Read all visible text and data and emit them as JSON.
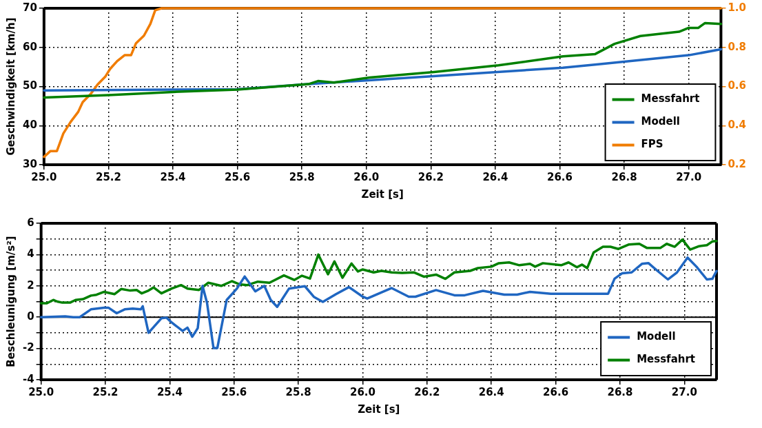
{
  "chart_data": [
    {
      "type": "line",
      "xlabel": "Zeit [s]",
      "ylabel": "Geschwindigkeit [km/h]",
      "xlim": [
        25.0,
        27.1
      ],
      "xticks": [
        {
          "value": 25.0,
          "label": "25.0"
        },
        25.2,
        25.4,
        25.6,
        25.8,
        {
          "value": 26.0,
          "label": "26.0"
        },
        26.2,
        26.4,
        26.6,
        26.8,
        {
          "value": 27.0,
          "label": "27.0"
        }
      ],
      "ylim": [
        30,
        70
      ],
      "yticks": [
        30,
        40,
        50,
        60,
        70
      ],
      "y2lim": [
        0.2,
        1.0
      ],
      "y2ticks": [
        0.2,
        0.4,
        0.6,
        0.8,
        {
          "value": 1.0,
          "label": "1.0"
        }
      ],
      "grid": true,
      "legend": "bottom right",
      "line_style": "solid",
      "marker": "none",
      "series": [
        {
          "name": "Messfahrt",
          "color": "#008000",
          "x": [
            25.0,
            25.2,
            25.4,
            25.6,
            25.82,
            25.85,
            25.9,
            26.01,
            26.21,
            26.41,
            26.61,
            26.71,
            26.77,
            26.85,
            26.97,
            27.0,
            27.03,
            27.05,
            27.1
          ],
          "values": [
            47.2,
            47.8,
            48.6,
            49.2,
            50.6,
            51.4,
            51.0,
            52.3,
            53.7,
            55.4,
            57.7,
            58.3,
            60.9,
            62.9,
            64.0,
            65.0,
            65.0,
            66.2,
            66.0
          ]
        },
        {
          "name": "Modell",
          "color": "#1f66c1",
          "x": [
            25.0,
            25.4,
            25.6,
            25.82,
            26.2,
            26.61,
            26.72,
            27.0,
            27.1
          ],
          "values": [
            49.0,
            49.2,
            49.3,
            50.6,
            52.6,
            54.8,
            55.7,
            58.0,
            59.5
          ]
        },
        {
          "name": "FPS",
          "color": "#f07c00",
          "axis": "y2",
          "x": [
            25.0,
            25.02,
            25.04,
            25.06,
            25.083,
            25.106,
            25.12,
            25.144,
            25.166,
            25.19,
            25.205,
            25.227,
            25.25,
            25.27,
            25.285,
            25.31,
            25.33,
            25.345,
            25.365,
            27.1
          ],
          "values": [
            0.24,
            0.27,
            0.27,
            0.36,
            0.42,
            0.47,
            0.52,
            0.56,
            0.61,
            0.65,
            0.69,
            0.73,
            0.76,
            0.76,
            0.82,
            0.86,
            0.92,
            0.99,
            1.0,
            1.0
          ]
        }
      ]
    },
    {
      "type": "line",
      "xlabel": "Zeit [s]",
      "ylabel": "Beschleunigung [m/s²]",
      "xlim": [
        25.0,
        27.1
      ],
      "xticks": [
        {
          "value": 25.0,
          "label": "25.0"
        },
        25.2,
        25.4,
        25.6,
        25.8,
        {
          "value": 26.0,
          "label": "26.0"
        },
        26.2,
        26.4,
        26.6,
        26.8,
        {
          "value": 27.0,
          "label": "27.0"
        }
      ],
      "ylim": [
        -4,
        6
      ],
      "yticks": [
        -4,
        {
          "value": -3,
          "label": null
        },
        -2,
        {
          "value": -1,
          "label": null
        },
        0,
        {
          "value": 1,
          "label": null
        },
        2,
        {
          "value": 3,
          "label": null
        },
        4,
        {
          "value": 5,
          "label": null
        },
        6
      ],
      "grid": true,
      "legend": "bottom right",
      "line_style": "solid",
      "marker": "none",
      "ref_lines": [
        {
          "axis": "y",
          "value": 0,
          "color": "#000000"
        }
      ],
      "series": [
        {
          "name": "Modell",
          "color": "#1f66c1",
          "x": [
            25.0,
            25.075,
            25.1,
            25.12,
            25.155,
            25.195,
            25.21,
            25.235,
            25.26,
            25.285,
            25.31,
            25.316,
            25.334,
            25.374,
            25.39,
            25.406,
            25.44,
            25.455,
            25.47,
            25.487,
            25.502,
            25.516,
            25.536,
            25.548,
            25.577,
            25.609,
            25.633,
            25.666,
            25.694,
            25.714,
            25.734,
            25.771,
            25.82,
            25.848,
            25.876,
            25.917,
            25.957,
            26.0,
            26.014,
            26.09,
            26.143,
            26.164,
            26.228,
            26.285,
            26.317,
            26.374,
            26.44,
            26.48,
            26.52,
            26.585,
            26.64,
            26.763,
            26.783,
            26.807,
            26.836,
            26.868,
            26.888,
            26.917,
            26.949,
            26.977,
            27.01,
            27.038,
            27.07,
            27.087,
            27.1
          ],
          "values": [
            0.0,
            0.05,
            0.0,
            0.0,
            0.5,
            0.6,
            0.6,
            0.25,
            0.5,
            0.55,
            0.5,
            0.7,
            -1.0,
            -0.07,
            -0.03,
            -0.34,
            -0.88,
            -0.67,
            -1.25,
            -0.7,
            2.0,
            0.9,
            -1.97,
            -1.97,
            1.1,
            1.83,
            2.6,
            1.65,
            2.0,
            1.1,
            0.66,
            1.83,
            1.98,
            1.3,
            0.98,
            1.47,
            1.92,
            1.31,
            1.19,
            1.86,
            1.31,
            1.31,
            1.73,
            1.4,
            1.4,
            1.68,
            1.44,
            1.44,
            1.62,
            1.5,
            1.5,
            1.5,
            2.46,
            2.81,
            2.86,
            3.41,
            3.46,
            2.95,
            2.41,
            2.86,
            3.81,
            3.22,
            2.41,
            2.45,
            2.95
          ]
        },
        {
          "name": "Messfahrt",
          "color": "#008000",
          "x": [
            25.0,
            25.018,
            25.038,
            25.05,
            25.066,
            25.09,
            25.107,
            25.13,
            25.155,
            25.172,
            25.196,
            25.228,
            25.249,
            25.277,
            25.297,
            25.313,
            25.334,
            25.35,
            25.374,
            25.406,
            25.435,
            25.455,
            25.491,
            25.52,
            25.56,
            25.593,
            25.617,
            25.641,
            25.674,
            25.71,
            25.755,
            25.787,
            25.811,
            25.836,
            25.862,
            25.892,
            25.912,
            25.937,
            25.965,
            25.985,
            26.0,
            26.034,
            26.058,
            26.09,
            26.123,
            26.16,
            26.19,
            26.228,
            26.257,
            26.285,
            26.334,
            26.358,
            26.4,
            26.423,
            26.455,
            26.487,
            26.52,
            26.536,
            26.56,
            26.617,
            26.64,
            26.666,
            26.682,
            26.698,
            26.718,
            26.747,
            26.77,
            26.795,
            26.828,
            26.86,
            26.884,
            26.925,
            26.945,
            26.97,
            26.994,
            27.018,
            27.046,
            27.07,
            27.087,
            27.1
          ],
          "values": [
            0.89,
            0.89,
            1.1,
            1.0,
            0.93,
            0.93,
            1.1,
            1.15,
            1.38,
            1.43,
            1.62,
            1.47,
            1.8,
            1.7,
            1.74,
            1.52,
            1.7,
            1.9,
            1.52,
            1.83,
            2.05,
            1.83,
            1.74,
            2.2,
            2.0,
            2.3,
            2.1,
            2.05,
            2.27,
            2.2,
            2.67,
            2.38,
            2.65,
            2.47,
            4.0,
            2.74,
            3.56,
            2.52,
            3.43,
            2.92,
            3.05,
            2.86,
            2.96,
            2.86,
            2.83,
            2.86,
            2.59,
            2.72,
            2.45,
            2.86,
            2.96,
            3.14,
            3.23,
            3.45,
            3.5,
            3.32,
            3.41,
            3.23,
            3.45,
            3.32,
            3.5,
            3.19,
            3.36,
            3.14,
            4.14,
            4.5,
            4.5,
            4.36,
            4.65,
            4.69,
            4.42,
            4.42,
            4.69,
            4.5,
            4.96,
            4.32,
            4.54,
            4.6,
            4.84,
            4.87
          ]
        }
      ]
    }
  ]
}
